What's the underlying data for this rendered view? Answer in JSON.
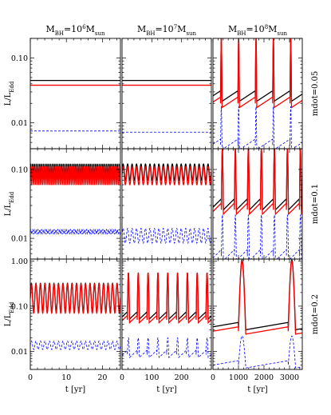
{
  "chart_data": {
    "type": "line",
    "y_scale": "log",
    "ylabel": "L/L_Edd",
    "xlabel": "t [yr]",
    "column_titles": [
      "M_BH=10^6 M_sun",
      "M_BH=10^7 M_sun",
      "M_BH=10^8 M_sun"
    ],
    "row_labels": [
      "mdot=0.05",
      "mdot=0.1",
      "mdot=0.2"
    ],
    "series_styles": [
      {
        "key": "black",
        "color": "#000000",
        "dash": "none"
      },
      {
        "key": "red",
        "color": "#ff0000",
        "dash": "none"
      },
      {
        "key": "blue",
        "color": "#0000ff",
        "dash": "dashed"
      }
    ],
    "columns_x": [
      {
        "xlim": [
          0,
          25
        ],
        "ticks": [
          0,
          10,
          20
        ],
        "tick_labels": [
          "0",
          "10",
          "20"
        ]
      },
      {
        "xlim": [
          0,
          300
        ],
        "ticks": [
          0,
          100,
          200
        ],
        "tick_labels": [
          "0",
          "100",
          "200"
        ]
      },
      {
        "xlim": [
          0,
          3500
        ],
        "ticks": [
          0,
          1000,
          2000,
          3000
        ],
        "tick_labels": [
          "0",
          "1000",
          "2000",
          "3000"
        ]
      }
    ],
    "rows_y": [
      {
        "ylim": [
          0.004,
          0.2
        ],
        "ticks": [
          0.01,
          0.1
        ],
        "tick_labels": [
          "0.01",
          "0.10"
        ]
      },
      {
        "ylim": [
          0.005,
          0.2
        ],
        "ticks": [
          0.01,
          0.1
        ],
        "tick_labels": [
          "0.01",
          "0.10"
        ]
      },
      {
        "ylim": [
          0.004,
          1.1
        ],
        "ticks": [
          0.01,
          0.1,
          1.0
        ],
        "tick_labels": [
          "0.01",
          "0.10",
          "1.00"
        ]
      }
    ],
    "panels": [
      {
        "row": 0,
        "col": 0,
        "kind": "constant",
        "black": 0.045,
        "red": 0.038,
        "blue": 0.0075
      },
      {
        "row": 0,
        "col": 1,
        "kind": "constant",
        "black": 0.045,
        "red": 0.038,
        "blue": 0.0072
      },
      {
        "row": 0,
        "col": 2,
        "kind": "bursts",
        "period": 680,
        "first": 300,
        "width": 55,
        "black": {
          "base": 0.025,
          "peak": 0.2
        },
        "red": {
          "base": 0.02,
          "peak": 0.2
        },
        "blue": {
          "base": 0.0045,
          "peak": 0.018
        }
      },
      {
        "row": 1,
        "col": 0,
        "kind": "oscillation",
        "period": 0.5,
        "black": {
          "low": 0.07,
          "high": 0.12
        },
        "red": {
          "low": 0.06,
          "high": 0.11
        },
        "blue": {
          "low": 0.0115,
          "high": 0.0135
        }
      },
      {
        "row": 1,
        "col": 1,
        "kind": "oscillation",
        "period": 15,
        "black": {
          "low": 0.07,
          "high": 0.12
        },
        "red": {
          "low": 0.06,
          "high": 0.11
        },
        "blue": {
          "low": 0.0085,
          "high": 0.014
        }
      },
      {
        "row": 1,
        "col": 2,
        "kind": "bursts",
        "period": 510,
        "first": 330,
        "width": 75,
        "black": {
          "base": 0.03,
          "peak": 0.2
        },
        "red": {
          "base": 0.026,
          "peak": 0.2
        },
        "blue": {
          "base": 0.0055,
          "peak": 0.022
        }
      },
      {
        "row": 2,
        "col": 0,
        "kind": "oscillation",
        "period": 1.25,
        "black": {
          "low": 0.075,
          "high": 0.32
        },
        "red": {
          "low": 0.07,
          "high": 0.31
        },
        "blue": {
          "low": 0.011,
          "high": 0.017
        }
      },
      {
        "row": 2,
        "col": 1,
        "kind": "bursts",
        "period": 33,
        "first": 18,
        "width": 7,
        "black": {
          "base": 0.06,
          "peak": 0.55
        },
        "red": {
          "base": 0.05,
          "peak": 0.55
        },
        "blue": {
          "base": 0.0085,
          "peak": 0.02
        }
      },
      {
        "row": 2,
        "col": 2,
        "kind": "bursts",
        "period": 1950,
        "first": 1000,
        "width": 280,
        "black": {
          "base": 0.035,
          "peak": 1.05
        },
        "red": {
          "base": 0.028,
          "peak": 1.0
        },
        "blue": {
          "base": 0.005,
          "peak": 0.022
        }
      }
    ]
  }
}
